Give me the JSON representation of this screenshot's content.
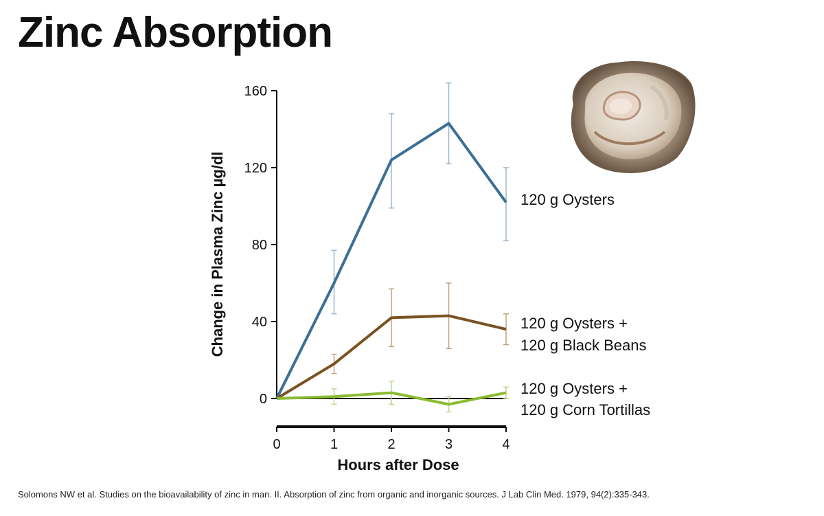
{
  "slide": {
    "title": "Zinc Absorption",
    "citation": "Solomons NW et al. Studies on the bioavailability of zinc in man. II. Absorption of zinc from organic and inorganic sources. J Lab Clin Med. 1979, 94(2):335-343."
  },
  "chart_data": {
    "type": "line",
    "title": "",
    "xlabel": "Hours after Dose",
    "ylabel": "Change in Plasma Zinc µg/dl",
    "x": [
      0,
      1,
      2,
      3,
      4
    ],
    "xticks": [
      "0",
      "1",
      "2",
      "3",
      "4"
    ],
    "yticks": [
      "0",
      "40",
      "80",
      "120",
      "160"
    ],
    "xlim": [
      0,
      4
    ],
    "ylim": [
      0,
      160
    ],
    "grid": false,
    "legend": "direct labels at right of lines",
    "series": [
      {
        "name": "120 g Oysters",
        "label_lines": [
          "120 g Oysters"
        ],
        "color": "#3b6f96",
        "error_color": "#9db7cc",
        "values": [
          0,
          60,
          124,
          143,
          102
        ],
        "error_low": [
          0,
          44,
          99,
          122,
          82
        ],
        "error_high": [
          0,
          77,
          148,
          164,
          120
        ]
      },
      {
        "name": "120 g Oysters + 120 g Black Beans",
        "label_lines": [
          "120 g Oysters +",
          "120 g Black Beans"
        ],
        "color": "#7a5222",
        "error_color": "#c2a27a",
        "values": [
          0,
          18,
          42,
          43,
          36
        ],
        "error_low": [
          0,
          13,
          27,
          26,
          28
        ],
        "error_high": [
          0,
          23,
          57,
          60,
          44
        ]
      },
      {
        "name": "120 g Oysters + 120 g Corn Tortillas",
        "label_lines": [
          "120 g Oysters +",
          "120 g Corn Tortillas"
        ],
        "color": "#8bbb33",
        "error_color": "#bcd98a",
        "values": [
          0,
          1,
          3,
          -3,
          3
        ],
        "error_low": [
          0,
          -3,
          -3,
          -7,
          0
        ],
        "error_high": [
          0,
          5,
          9,
          1,
          6
        ]
      }
    ]
  },
  "image": {
    "icon": "oyster-photo"
  }
}
